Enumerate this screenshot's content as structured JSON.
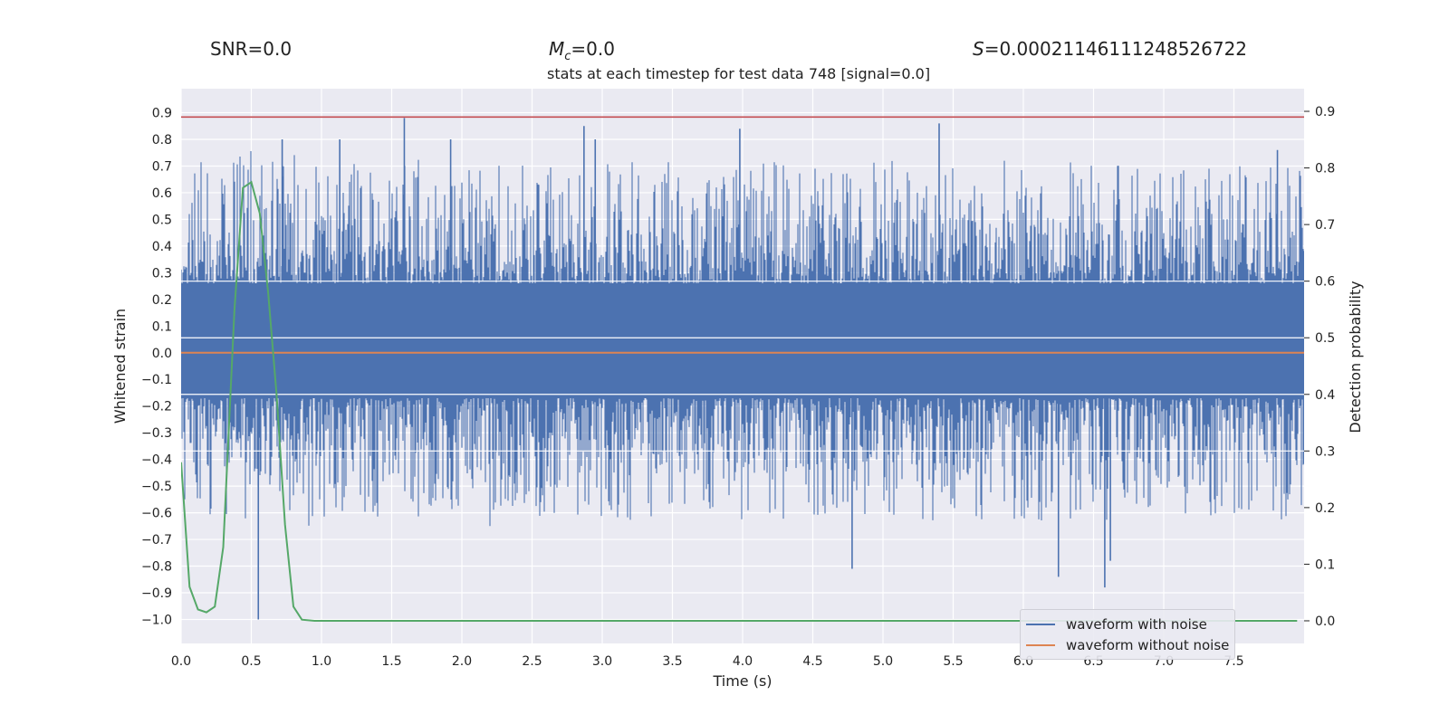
{
  "header": {
    "snr": "SNR=0.0",
    "mc_symbol": "M",
    "mc_sub": "c",
    "mc_value": "=0.0",
    "s_symbol": "S",
    "s_value": "=0.00021146111248526722"
  },
  "colors": {
    "background": "#eaeaf2",
    "grid": "#ffffff",
    "noisy": "#4c72b0",
    "clean": "#dd8452",
    "prob": "#55a868",
    "threshold": "#c44e52"
  },
  "chart_data": {
    "type": "line",
    "title": "stats at each timestep for test data 748 [signal=0.0]",
    "xlabel": "Time (s)",
    "ylabel": "Whitened strain",
    "ylabel_right": "Detection probability",
    "xlim": [
      0,
      8
    ],
    "ylim": [
      -1.09,
      0.99
    ],
    "ylim_right": [
      -0.04,
      0.94
    ],
    "xticks": [
      "0.0",
      "0.5",
      "1.0",
      "1.5",
      "2.0",
      "2.5",
      "3.0",
      "3.5",
      "4.0",
      "4.5",
      "5.0",
      "5.5",
      "6.0",
      "6.5",
      "7.0",
      "7.5"
    ],
    "yticks_left": [
      "0.9",
      "0.8",
      "0.7",
      "0.6",
      "0.5",
      "0.4",
      "0.3",
      "0.2",
      "0.1",
      "0.0",
      "−0.1",
      "−0.2",
      "−0.3",
      "−0.4",
      "−0.5",
      "−0.6",
      "−0.7",
      "−0.8",
      "−0.9",
      "−1.0"
    ],
    "yticks_right": [
      "0.9",
      "0.8",
      "0.7",
      "0.6",
      "0.5",
      "0.4",
      "0.3",
      "0.2",
      "0.1",
      "0.0"
    ],
    "threshold_y": 0.89,
    "series": [
      {
        "name": "waveform with noise",
        "band": [
          -0.17,
          0.26
        ],
        "extremes": [
          {
            "t": 0.55,
            "y": -1.0
          },
          {
            "t": 0.72,
            "y": 0.8
          },
          {
            "t": 1.13,
            "y": 0.8
          },
          {
            "t": 1.59,
            "y": 0.88
          },
          {
            "t": 1.92,
            "y": 0.8
          },
          {
            "t": 2.87,
            "y": 0.85
          },
          {
            "t": 2.95,
            "y": 0.8
          },
          {
            "t": 3.98,
            "y": 0.84
          },
          {
            "t": 4.78,
            "y": -0.81
          },
          {
            "t": 5.4,
            "y": 0.86
          },
          {
            "t": 6.25,
            "y": -0.84
          },
          {
            "t": 6.58,
            "y": -0.88
          },
          {
            "t": 6.62,
            "y": -0.78
          },
          {
            "t": 7.81,
            "y": 0.76
          }
        ]
      },
      {
        "name": "waveform without noise",
        "y": 0.0
      },
      {
        "name": "detection probability",
        "axis": "right",
        "x": [
          0.0,
          0.06,
          0.12,
          0.18,
          0.24,
          0.3,
          0.38,
          0.44,
          0.5,
          0.56,
          0.62,
          0.68,
          0.74,
          0.8,
          0.86,
          0.95,
          7.95
        ],
        "y": [
          0.28,
          0.06,
          0.02,
          0.015,
          0.025,
          0.13,
          0.55,
          0.765,
          0.775,
          0.72,
          0.58,
          0.4,
          0.17,
          0.025,
          0.002,
          0.0,
          0.0
        ]
      }
    ],
    "legend": {
      "position": "lower-right",
      "entries": [
        "waveform with noise",
        "waveform without noise"
      ]
    }
  }
}
